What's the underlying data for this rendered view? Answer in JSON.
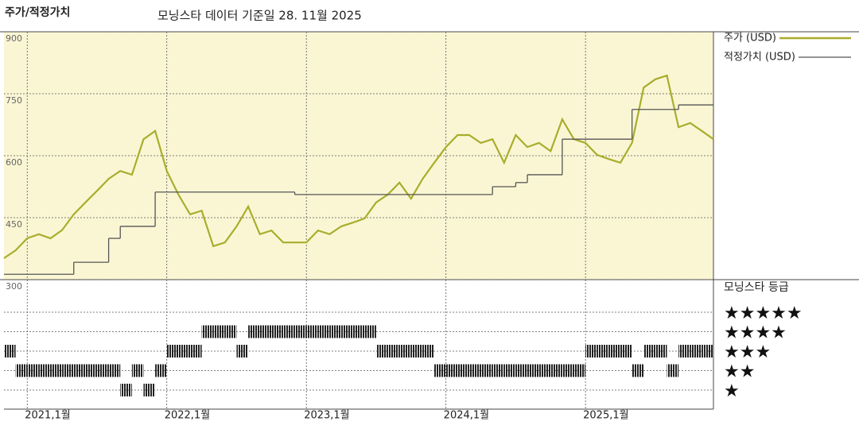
{
  "header": {
    "title": "주가/적정가치",
    "subtitle": "모닝스타 데이터 기준일 28. 11월 2025"
  },
  "chart_data": [
    {
      "type": "line",
      "xlim": [
        "2020-11",
        "2025-12"
      ],
      "xticks": [
        "2021-01",
        "2022-01",
        "2023-01",
        "2024-01",
        "2025-01"
      ],
      "ylim": [
        300,
        900
      ],
      "yticks": [
        300,
        450,
        600,
        750,
        900
      ],
      "grid": true,
      "series": [
        {
          "name": "주가 (USD)",
          "color": "#a9ad2c",
          "x": [
            "2020-11",
            "2020-12",
            "2021-01",
            "2021-02",
            "2021-03",
            "2021-04",
            "2021-05",
            "2021-06",
            "2021-07",
            "2021-08",
            "2021-09",
            "2021-10",
            "2021-11",
            "2021-12",
            "2022-01",
            "2022-02",
            "2022-03",
            "2022-04",
            "2022-05",
            "2022-06",
            "2022-07",
            "2022-08",
            "2022-09",
            "2022-10",
            "2022-11",
            "2022-12",
            "2023-01",
            "2023-02",
            "2023-03",
            "2023-04",
            "2023-05",
            "2023-06",
            "2023-07",
            "2023-08",
            "2023-09",
            "2023-10",
            "2023-11",
            "2023-12",
            "2024-01",
            "2024-02",
            "2024-03",
            "2024-04",
            "2024-05",
            "2024-06",
            "2024-07",
            "2024-08",
            "2024-09",
            "2024-10",
            "2024-11",
            "2024-12",
            "2025-01",
            "2025-02",
            "2025-03",
            "2025-04",
            "2025-05",
            "2025-06",
            "2025-07",
            "2025-08",
            "2025-09",
            "2025-10",
            "2025-11",
            "2025-12"
          ],
          "values": [
            352,
            371,
            400,
            410,
            400,
            420,
            458,
            487,
            515,
            544,
            563,
            554,
            640,
            660,
            563,
            506,
            458,
            467,
            381,
            390,
            429,
            477,
            410,
            419,
            390,
            390,
            390,
            419,
            410,
            429,
            438,
            448,
            487,
            506,
            535,
            496,
            544,
            583,
            621,
            650,
            650,
            631,
            640,
            583,
            650,
            621,
            631,
            611,
            688,
            640,
            631,
            602,
            592,
            583,
            631,
            765,
            785,
            794,
            669,
            679,
            660,
            640
          ]
        },
        {
          "name": "적정가치 (USD)",
          "color": "#555555",
          "step": true,
          "x": [
            "2020-11",
            "2021-05",
            "2021-08",
            "2021-09",
            "2021-12",
            "2022-12",
            "2024-05",
            "2024-07",
            "2024-08",
            "2024-11",
            "2025-05",
            "2025-09"
          ],
          "values": [
            313,
            342,
            400,
            429,
            512,
            506,
            525,
            535,
            554,
            640,
            712,
            723
          ]
        }
      ]
    },
    {
      "type": "rating",
      "title": "모닝스타 등급",
      "xlim": [
        "2020-11",
        "2025-12"
      ],
      "xticks": [
        {
          "value": "2021-01",
          "label": "2021,1월"
        },
        {
          "value": "2022-01",
          "label": "2022,1월"
        },
        {
          "value": "2023-01",
          "label": "2023,1월"
        },
        {
          "value": "2024-01",
          "label": "2024,1월"
        },
        {
          "value": "2025-01",
          "label": "2025,1월"
        }
      ],
      "yticks": [
        {
          "value": 5,
          "label": "★★★★★"
        },
        {
          "value": 4,
          "label": "★★★★"
        },
        {
          "value": 3,
          "label": "★★★"
        },
        {
          "value": 2,
          "label": "★★"
        },
        {
          "value": 1,
          "label": "★"
        }
      ],
      "x": [
        "2020-11",
        "2020-12",
        "2021-01",
        "2021-02",
        "2021-03",
        "2021-04",
        "2021-05",
        "2021-06",
        "2021-07",
        "2021-08",
        "2021-09",
        "2021-10",
        "2021-11",
        "2021-12",
        "2022-01",
        "2022-02",
        "2022-03",
        "2022-04",
        "2022-05",
        "2022-06",
        "2022-07",
        "2022-08",
        "2022-09",
        "2022-10",
        "2022-11",
        "2022-12",
        "2023-01",
        "2023-02",
        "2023-03",
        "2023-04",
        "2023-05",
        "2023-06",
        "2023-07",
        "2023-08",
        "2023-09",
        "2023-10",
        "2023-11",
        "2023-12",
        "2024-01",
        "2024-02",
        "2024-03",
        "2024-04",
        "2024-05",
        "2024-06",
        "2024-07",
        "2024-08",
        "2024-09",
        "2024-10",
        "2024-11",
        "2024-12",
        "2025-01",
        "2025-02",
        "2025-03",
        "2025-04",
        "2025-05",
        "2025-06",
        "2025-07",
        "2025-08",
        "2025-09",
        "2025-10",
        "2025-11"
      ],
      "values": [
        3,
        2,
        2,
        2,
        2,
        2,
        2,
        2,
        2,
        2,
        1,
        2,
        1,
        2,
        3,
        3,
        3,
        4,
        4,
        4,
        3,
        4,
        4,
        4,
        4,
        4,
        4,
        4,
        4,
        4,
        4,
        4,
        3,
        3,
        3,
        3,
        3,
        2,
        2,
        2,
        2,
        2,
        2,
        2,
        2,
        2,
        2,
        2,
        2,
        2,
        3,
        3,
        3,
        3,
        2,
        3,
        3,
        2,
        3,
        3,
        3
      ]
    }
  ]
}
